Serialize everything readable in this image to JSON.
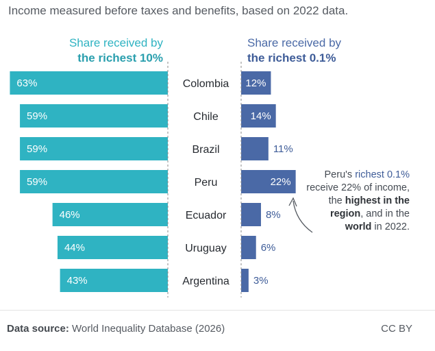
{
  "subtitle": "Income measured before taxes and benefits, based on 2022 data.",
  "headers": {
    "left_line1": "Share received by",
    "left_line2": "the richest 10%",
    "right_line1": "Share received by",
    "right_line2": "the richest 0.1%"
  },
  "annotation": {
    "part1": "Peru's ",
    "part2": "richest 0.1%",
    "part3": " receive 22% of income, the ",
    "part4": "highest in the region",
    "part5": ", and in the ",
    "part6": "world",
    "part7": " in 2022."
  },
  "footer": {
    "source_label": "Data source:",
    "source_text": " World Inequality Database (2026)",
    "license": "CC BY"
  },
  "colors": {
    "top10": "#2fb3c2",
    "top01": "#4a69a6",
    "axis": "#888888"
  },
  "chart_data": {
    "type": "bar",
    "categories": [
      "Colombia",
      "Chile",
      "Brazil",
      "Peru",
      "Ecuador",
      "Uruguay",
      "Argentina"
    ],
    "series": [
      {
        "name": "Share received by the richest 10%",
        "values": [
          63,
          59,
          59,
          59,
          46,
          44,
          43
        ],
        "unit": "%"
      },
      {
        "name": "Share received by the richest 0.1%",
        "values": [
          12,
          14,
          11,
          22,
          8,
          6,
          3
        ],
        "unit": "%"
      }
    ],
    "value_labels_left": [
      "63%",
      "59%",
      "59%",
      "59%",
      "46%",
      "44%",
      "43%"
    ],
    "value_labels_right": [
      "12%",
      "14%",
      "11%",
      "22%",
      "8%",
      "6%",
      "3%"
    ],
    "layout": "butterfly"
  }
}
